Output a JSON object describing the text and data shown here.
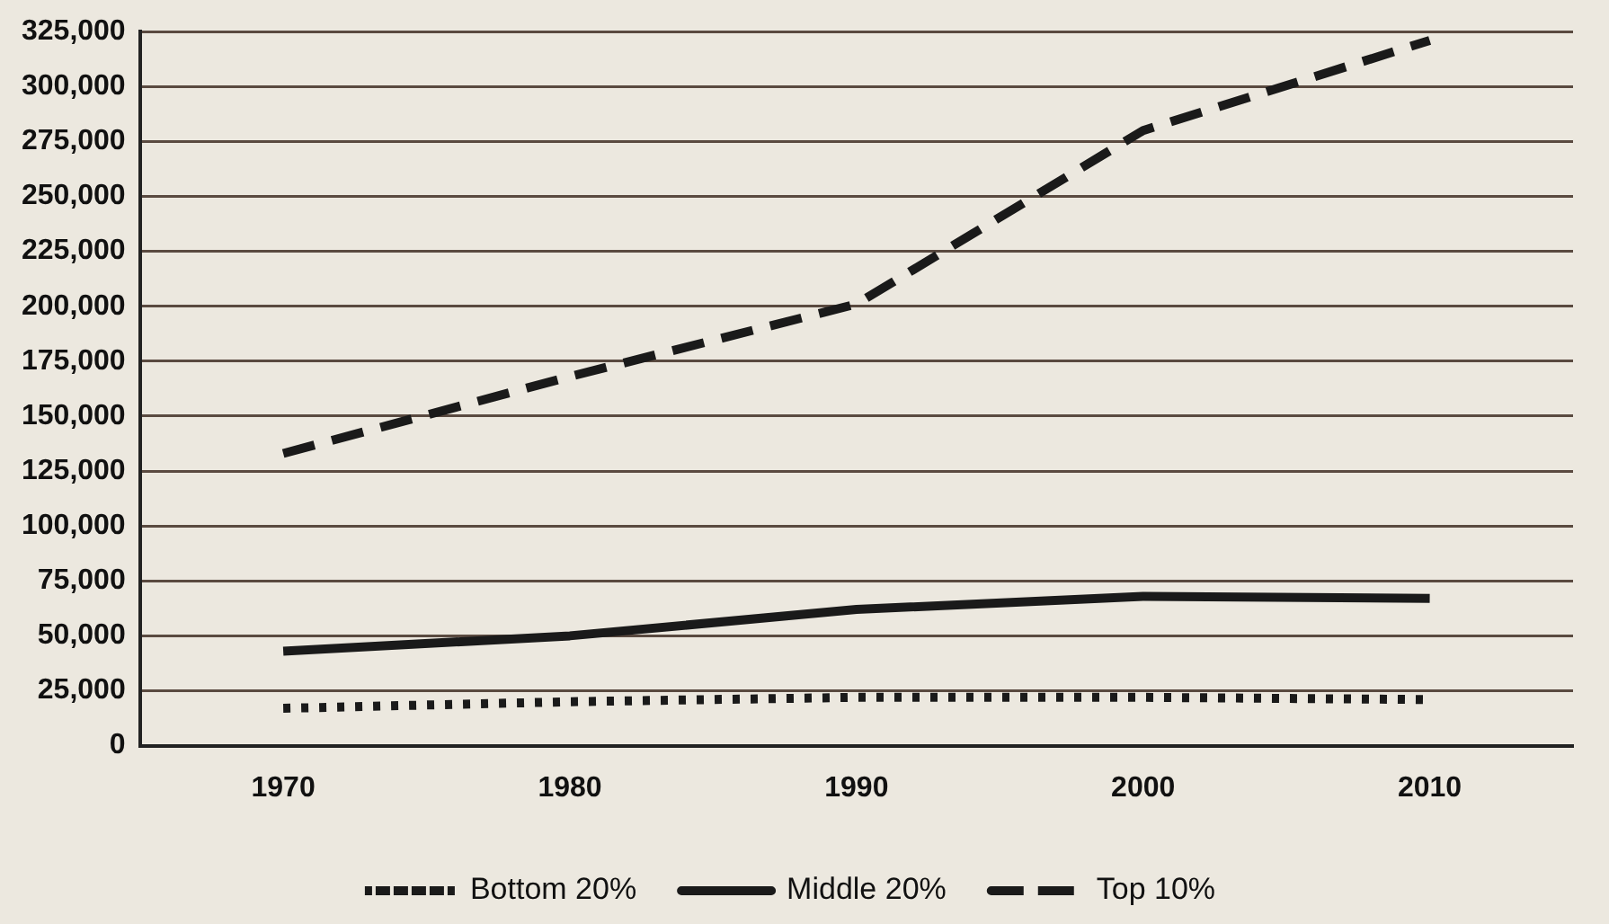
{
  "chart_data": {
    "type": "line",
    "categories": [
      "1970",
      "1980",
      "1990",
      "2000",
      "2010"
    ],
    "series": [
      {
        "name": "Bottom 20%",
        "color": "#1a1a1a",
        "line_style": "dotted",
        "values": [
          17000,
          20000,
          22000,
          22000,
          21000
        ]
      },
      {
        "name": "Middle 20%",
        "color": "#1a1a1a",
        "line_style": "solid",
        "values": [
          43000,
          50000,
          62000,
          68000,
          67000
        ]
      },
      {
        "name": "Top 10%",
        "color": "#1a1a1a",
        "line_style": "dashed",
        "values": [
          133000,
          168000,
          201000,
          280000,
          321000
        ]
      }
    ],
    "ylim": [
      0,
      325000
    ],
    "yticks": [
      {
        "value": 0,
        "label": "0"
      },
      {
        "value": 25000,
        "label": "25,000"
      },
      {
        "value": 50000,
        "label": "50,000"
      },
      {
        "value": 75000,
        "label": "75,000"
      },
      {
        "value": 100000,
        "label": "100,000"
      },
      {
        "value": 125000,
        "label": "125,000"
      },
      {
        "value": 150000,
        "label": "150,000"
      },
      {
        "value": 175000,
        "label": "175,000"
      },
      {
        "value": 200000,
        "label": "200,000"
      },
      {
        "value": 225000,
        "label": "225,000"
      },
      {
        "value": 250000,
        "label": "250,000"
      },
      {
        "value": 275000,
        "label": "275,000"
      },
      {
        "value": 300000,
        "label": "300,000"
      },
      {
        "value": 325000,
        "label": "325,000"
      }
    ],
    "grid": "y",
    "legend": "bottom",
    "marker": "none"
  }
}
